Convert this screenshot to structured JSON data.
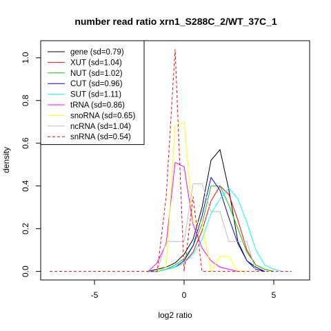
{
  "chart_data": {
    "type": "line",
    "title": "number read ratio xrn1_S288C_2/WT_37C_1",
    "xlabel": "log2 ratio",
    "ylabel": "density",
    "xlim": [
      -8.0,
      7.0
    ],
    "ylim": [
      -0.04,
      1.08
    ],
    "xticks": [
      -5,
      0,
      5
    ],
    "xtick_labels": [
      "-5",
      "0",
      "5"
    ],
    "yticks": [
      0.0,
      0.2,
      0.4,
      0.6,
      0.8,
      1.0
    ],
    "ytick_labels": [
      "0.0",
      "0.2",
      "0.4",
      "0.6",
      "0.8",
      "1.0"
    ],
    "legend_position": "top-left",
    "series": [
      {
        "name": "gene (sd=0.79)",
        "color": "#000000",
        "dash": "solid",
        "x": [
          -2.0,
          -1.5,
          -1.0,
          -0.5,
          0.0,
          0.5,
          1.0,
          1.5,
          2.0,
          2.5,
          3.0,
          3.5,
          4.0,
          4.5
        ],
        "y": [
          0.0,
          0.01,
          0.02,
          0.04,
          0.08,
          0.15,
          0.3,
          0.52,
          0.57,
          0.38,
          0.14,
          0.05,
          0.02,
          0.0
        ]
      },
      {
        "name": "XUT (sd=1.04)",
        "color": "#ff0000",
        "dash": "solid",
        "x": [
          -2.0,
          -1.5,
          -1.0,
          -0.5,
          0.0,
          0.5,
          1.0,
          1.5,
          2.0,
          2.5,
          3.0,
          3.5,
          4.0,
          4.5,
          5.0
        ],
        "y": [
          0.0,
          0.0,
          0.01,
          0.02,
          0.04,
          0.09,
          0.19,
          0.33,
          0.4,
          0.36,
          0.24,
          0.1,
          0.03,
          0.01,
          0.0
        ]
      },
      {
        "name": "NUT (sd=1.02)",
        "color": "#00cc00",
        "dash": "solid",
        "x": [
          -2.0,
          -1.5,
          -1.0,
          -0.5,
          0.0,
          0.5,
          1.0,
          1.5,
          2.0,
          2.5,
          3.0,
          3.5,
          4.0,
          4.5,
          5.0
        ],
        "y": [
          0.0,
          0.0,
          0.01,
          0.03,
          0.06,
          0.12,
          0.22,
          0.4,
          0.4,
          0.31,
          0.2,
          0.09,
          0.03,
          0.01,
          0.0
        ]
      },
      {
        "name": "CUT (sd=0.96)",
        "color": "#0000ff",
        "dash": "solid",
        "x": [
          -2.0,
          -1.5,
          -1.0,
          -0.5,
          0.0,
          0.5,
          1.0,
          1.5,
          2.0,
          2.5,
          3.0,
          3.5,
          4.0,
          4.5
        ],
        "y": [
          0.0,
          0.0,
          0.01,
          0.02,
          0.05,
          0.12,
          0.26,
          0.44,
          0.38,
          0.25,
          0.13,
          0.05,
          0.01,
          0.0
        ]
      },
      {
        "name": "SUT (sd=1.11)",
        "color": "#00ffff",
        "dash": "solid",
        "x": [
          -2.0,
          -1.5,
          -1.0,
          -0.5,
          0.0,
          0.5,
          1.0,
          1.5,
          2.0,
          2.5,
          3.0,
          3.5,
          4.0,
          4.5,
          5.0,
          5.5
        ],
        "y": [
          0.0,
          0.0,
          0.01,
          0.02,
          0.04,
          0.08,
          0.15,
          0.27,
          0.34,
          0.39,
          0.34,
          0.23,
          0.1,
          0.03,
          0.01,
          0.0
        ]
      },
      {
        "name": "tRNA (sd=0.86)",
        "color": "#ff00ff",
        "dash": "solid",
        "x": [
          -2.0,
          -1.5,
          -1.0,
          -0.5,
          0.0,
          0.5,
          1.0,
          1.5,
          2.0,
          2.5,
          3.0
        ],
        "y": [
          0.0,
          0.04,
          0.13,
          0.51,
          0.49,
          0.22,
          0.11,
          0.05,
          0.02,
          0.01,
          0.0
        ]
      },
      {
        "name": "snoRNA (sd=0.65)",
        "color": "#ffff00",
        "dash": "solid",
        "x": [
          -1.5,
          -1.0,
          -0.5,
          0.0,
          0.5,
          1.0,
          1.5,
          2.0,
          2.5,
          3.0,
          3.5
        ],
        "y": [
          0.0,
          0.02,
          0.68,
          0.7,
          0.23,
          0.23,
          0.0,
          0.07,
          0.07,
          0.0,
          0.0
        ]
      },
      {
        "name": "ncRNA (sd=1.04)",
        "color": "#bebebe",
        "dash": "solid",
        "x": [
          -1.5,
          -1.0,
          -0.5,
          0.0,
          0.5,
          1.0,
          1.5,
          2.0,
          2.5,
          3.0,
          3.5,
          4.0
        ],
        "y": [
          0.0,
          0.14,
          0.14,
          0.14,
          0.41,
          0.41,
          0.28,
          0.28,
          0.14,
          0.14,
          0.14,
          0.0
        ]
      },
      {
        "name": "snRNA (sd=0.54)",
        "color": "#ff0000",
        "dash": "dashed",
        "x": [
          -7.5,
          -1.5,
          -1.0,
          -0.5,
          0.0,
          0.5,
          1.0,
          1.5,
          2.0,
          2.5,
          3.0,
          3.5,
          4.0,
          4.5,
          5.0,
          6.0
        ],
        "y": [
          0.0,
          0.0,
          0.35,
          1.04,
          0.0,
          0.35,
          0.0,
          0.0,
          0.0,
          0.0,
          0.0,
          0.0,
          0.0,
          0.0,
          0.0,
          0.0
        ]
      }
    ]
  }
}
